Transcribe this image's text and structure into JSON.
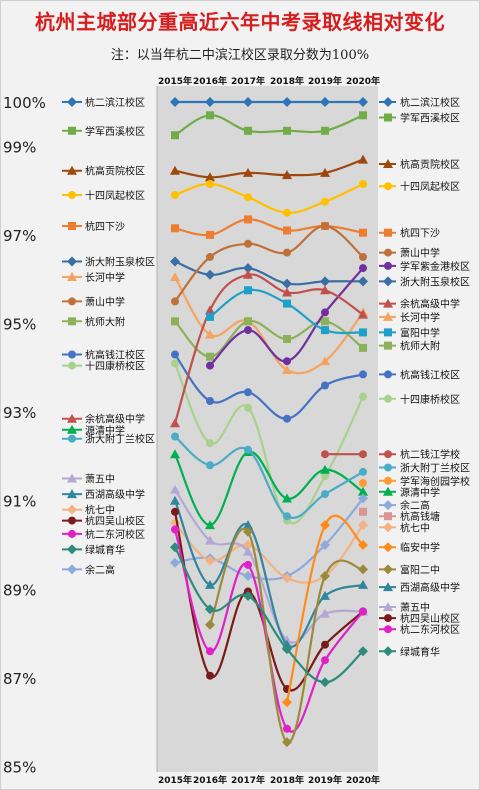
{
  "title": "杭州主城部分重高近六年中考录取线相对变化",
  "note": "注：以当年杭二中滨江校区录取分数为100%",
  "chart_data": {
    "type": "line",
    "categories": [
      "2015年",
      "2016年",
      "2017年",
      "2018年",
      "2019年",
      "2020年"
    ],
    "ylim": [
      85,
      100.4
    ],
    "ytick_labels": [
      {
        "value": 100,
        "label": "100%"
      },
      {
        "value": 99,
        "label": "99%"
      },
      {
        "value": 97,
        "label": "97%"
      },
      {
        "value": 95,
        "label": "95%"
      },
      {
        "value": 93,
        "label": "93%"
      },
      {
        "value": 91,
        "label": "91%"
      },
      {
        "value": 89,
        "label": "89%"
      },
      {
        "value": 87,
        "label": "87%"
      },
      {
        "value": 85,
        "label": "85%"
      }
    ],
    "series": [
      {
        "name": "杭二滨江校区",
        "color": "#2e75b6",
        "marker": "diamond",
        "values": [
          100,
          100,
          100,
          100,
          100,
          100
        ]
      },
      {
        "name": "学军西溪校区",
        "color": "#70ad47",
        "marker": "square",
        "values": [
          99.25,
          99.7,
          99.35,
          99.35,
          99.35,
          99.7
        ]
      },
      {
        "name": "杭高贡院校区",
        "color": "#9e480e",
        "marker": "triangle",
        "values": [
          98.45,
          98.3,
          98.4,
          98.35,
          98.4,
          98.7
        ]
      },
      {
        "name": "十四凤起校区",
        "color": "#ffc000",
        "marker": "circle",
        "values": [
          97.9,
          98.15,
          97.85,
          97.5,
          97.75,
          98.15
        ]
      },
      {
        "name": "杭四下沙",
        "color": "#ed7d31",
        "marker": "square",
        "values": [
          97.15,
          97.0,
          97.35,
          97.1,
          97.2,
          97.05
        ]
      },
      {
        "name": "浙大附玉泉校区",
        "color": "#3a6ea5",
        "marker": "diamond",
        "values": [
          96.4,
          96.1,
          96.25,
          95.9,
          95.95,
          95.95
        ]
      },
      {
        "name": "长河中学",
        "color": "#f4a460",
        "marker": "triangle",
        "values": [
          96.05,
          94.75,
          95.05,
          93.95,
          94.15,
          95.25
        ]
      },
      {
        "name": "萧山中学",
        "color": "#c0703a",
        "marker": "circle",
        "values": [
          95.5,
          96.5,
          96.8,
          96.6,
          97.2,
          96.5
        ]
      },
      {
        "name": "杭师大附",
        "color": "#8db15a",
        "marker": "square",
        "values": [
          95.05,
          94.25,
          95.05,
          94.65,
          95.05,
          94.45
        ]
      },
      {
        "name": "杭高钱江校区",
        "color": "#4472c4",
        "marker": "circle",
        "values": [
          94.3,
          93.25,
          93.45,
          92.85,
          93.6,
          93.85
        ]
      },
      {
        "name": "十四康桥校区",
        "color": "#a9d18e",
        "marker": "circle",
        "values": [
          94.1,
          92.3,
          93.1,
          90.55,
          91.55,
          93.35
        ]
      },
      {
        "name": "学军紫金港校区",
        "color": "#7030a0",
        "marker": "circle",
        "values": [
          null,
          94.05,
          94.85,
          94.15,
          95.25,
          96.25
        ]
      },
      {
        "name": "余杭高级中学",
        "color": "#c0504d",
        "marker": "triangle",
        "values": [
          92.75,
          95.3,
          96.1,
          95.7,
          95.75,
          95.2
        ]
      },
      {
        "name": "富阳中学",
        "color": "#1fa0c8",
        "marker": "square",
        "values": [
          null,
          95.15,
          95.75,
          95.45,
          94.85,
          94.8
        ]
      },
      {
        "name": "源清中学",
        "color": "#00b050",
        "marker": "triangle",
        "values": [
          92.05,
          90.45,
          92.1,
          91.05,
          91.7,
          91.2
        ]
      },
      {
        "name": "浙大附丁兰校区",
        "color": "#4bacc6",
        "marker": "circle",
        "values": [
          92.45,
          91.8,
          92.15,
          90.65,
          91.15,
          91.65
        ]
      },
      {
        "name": "杭二钱江学校",
        "color": "#c0504d",
        "marker": "circle",
        "values": [
          null,
          null,
          null,
          null,
          92.05,
          92.05
        ]
      },
      {
        "name": "学军海创园学校",
        "color": "#ff9933",
        "marker": "circle",
        "values": [
          null,
          null,
          null,
          null,
          null,
          91.4
        ]
      },
      {
        "name": "余二高",
        "color": "#8ea9db",
        "marker": "diamond",
        "values": [
          89.6,
          89.7,
          89.3,
          89.3,
          90.0,
          91.05
        ]
      },
      {
        "name": "杭高钱塘",
        "color": "#d99694",
        "marker": "square",
        "values": [
          null,
          null,
          null,
          null,
          null,
          90.75
        ]
      },
      {
        "name": "杭七中",
        "color": "#f4b183",
        "marker": "diamond",
        "values": [
          90.5,
          89.65,
          90.0,
          89.25,
          89.3,
          90.45
        ]
      },
      {
        "name": "萧五中",
        "color": "#b4a7d6",
        "marker": "triangle",
        "values": [
          91.25,
          90.1,
          89.85,
          87.85,
          88.45,
          88.5
        ]
      },
      {
        "name": "西湖高级中学",
        "color": "#31859c",
        "marker": "triangle",
        "values": [
          91.0,
          89.1,
          90.45,
          87.75,
          88.85,
          89.1
        ]
      },
      {
        "name": "杭四吴山校区",
        "color": "#7b1a1a",
        "marker": "circle",
        "values": [
          90.75,
          87.05,
          88.95,
          86.75,
          87.75,
          88.5
        ]
      },
      {
        "name": "杭二东河校区",
        "color": "#e020c8",
        "marker": "circle",
        "values": [
          90.35,
          87.6,
          89.55,
          85.85,
          87.4,
          88.5
        ]
      },
      {
        "name": "临安中学",
        "color": "#ff8c1a",
        "marker": "diamond",
        "values": [
          null,
          null,
          null,
          86.45,
          90.45,
          90.0
        ]
      },
      {
        "name": "富阳二中",
        "color": "#9c8a3c",
        "marker": "diamond",
        "values": [
          null,
          88.2,
          90.3,
          85.55,
          89.3,
          89.45
        ]
      },
      {
        "name": "绿城育华",
        "color": "#2e8b7a",
        "marker": "diamond",
        "values": [
          89.95,
          88.55,
          88.85,
          87.65,
          86.9,
          87.6
        ]
      }
    ],
    "left_labels": [
      {
        "name": "杭二滨江校区",
        "value": 100
      },
      {
        "name": "学军西溪校区",
        "value": 99.35
      },
      {
        "name": "杭高贡院校区",
        "value": 98.45
      },
      {
        "name": "十四凤起校区",
        "value": 97.9
      },
      {
        "name": "杭四下沙",
        "value": 97.2
      },
      {
        "name": "浙大附玉泉校区",
        "value": 96.4
      },
      {
        "name": "长河中学",
        "value": 96.05
      },
      {
        "name": "萧山中学",
        "value": 95.5
      },
      {
        "name": "杭师大附",
        "value": 95.05
      },
      {
        "name": "杭高钱江校区",
        "value": 94.3
      },
      {
        "name": "十四康桥校区",
        "value": 94.05
      },
      {
        "name": "余杭高级中学",
        "value": 92.85
      },
      {
        "name": "源清中学",
        "value": 92.6
      },
      {
        "name": "浙大附丁兰校区",
        "value": 92.4
      },
      {
        "name": "萧五中",
        "value": 91.5
      },
      {
        "name": "西湖高级中学",
        "value": 91.15
      },
      {
        "name": "杭七中",
        "value": 90.8
      },
      {
        "name": "杭四吴山校区",
        "value": 90.55
      },
      {
        "name": "杭二东河校区",
        "value": 90.25
      },
      {
        "name": "绿城育华",
        "value": 89.9
      },
      {
        "name": "余二高",
        "value": 89.45
      }
    ],
    "right_labels": [
      {
        "name": "杭二滨江校区",
        "value": 100
      },
      {
        "name": "学军西溪校区",
        "value": 99.65
      },
      {
        "name": "杭高贡院校区",
        "value": 98.6
      },
      {
        "name": "十四凤起校区",
        "value": 98.1
      },
      {
        "name": "杭四下沙",
        "value": 97.05
      },
      {
        "name": "萧山中学",
        "value": 96.6
      },
      {
        "name": "学军紫金港校区",
        "value": 96.3
      },
      {
        "name": "浙大附玉泉校区",
        "value": 95.95
      },
      {
        "name": "余杭高级中学",
        "value": 95.45
      },
      {
        "name": "长河中学",
        "value": 95.15
      },
      {
        "name": "富阳中学",
        "value": 94.8
      },
      {
        "name": "杭师大附",
        "value": 94.5
      },
      {
        "name": "杭高钱江校区",
        "value": 93.85
      },
      {
        "name": "十四康桥校区",
        "value": 93.3
      },
      {
        "name": "杭二钱江学校",
        "value": 92.05
      },
      {
        "name": "浙大附丁兰校区",
        "value": 91.75
      },
      {
        "name": "学军海创园学校",
        "value": 91.45
      },
      {
        "name": "源清中学",
        "value": 91.2
      },
      {
        "name": "余二高",
        "value": 90.9
      },
      {
        "name": "杭高钱塘",
        "value": 90.65
      },
      {
        "name": "杭七中",
        "value": 90.4
      },
      {
        "name": "临安中学",
        "value": 89.95
      },
      {
        "name": "富阳二中",
        "value": 89.45
      },
      {
        "name": "西湖高级中学",
        "value": 89.05
      },
      {
        "name": "萧五中",
        "value": 88.6
      },
      {
        "name": "杭四吴山校区",
        "value": 88.35
      },
      {
        "name": "杭二东河校区",
        "value": 88.1
      },
      {
        "name": "绿城育华",
        "value": 87.6
      }
    ]
  }
}
